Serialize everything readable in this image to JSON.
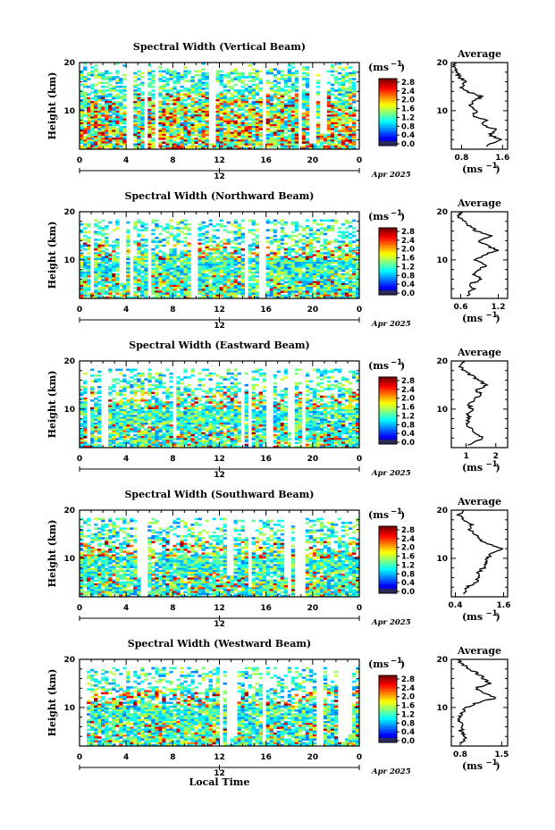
{
  "panels": [
    {
      "title": "Spectral Width (Vertical Beam)",
      "avg_ticks": [
        "0.8",
        "1.6"
      ],
      "avg_range": [
        0.6,
        1.7
      ],
      "avg_profile": [
        [
          2.5,
          1.25
        ],
        [
          4,
          1.55
        ],
        [
          5,
          1.35
        ],
        [
          6,
          1.5
        ],
        [
          7,
          1.2
        ],
        [
          8,
          1.3
        ],
        [
          9,
          1.0
        ],
        [
          10,
          1.1
        ],
        [
          11,
          0.95
        ],
        [
          12,
          1.05
        ],
        [
          13,
          1.2
        ],
        [
          14,
          0.9
        ],
        [
          15,
          0.8
        ],
        [
          16,
          0.9
        ],
        [
          17,
          0.75
        ],
        [
          18,
          0.7
        ],
        [
          19,
          0.65
        ],
        [
          20,
          0.7
        ]
      ]
    },
    {
      "title": "Spectral Width (Northward Beam)",
      "avg_ticks": [
        "0.6",
        "1.2"
      ],
      "avg_range": [
        0.45,
        1.35
      ],
      "avg_profile": [
        [
          2.5,
          0.7
        ],
        [
          4,
          0.8
        ],
        [
          5,
          0.75
        ],
        [
          6,
          0.95
        ],
        [
          7,
          0.8
        ],
        [
          8,
          0.9
        ],
        [
          9,
          1.0
        ],
        [
          10,
          0.85
        ],
        [
          11,
          0.95
        ],
        [
          12,
          1.2
        ],
        [
          13,
          1.0
        ],
        [
          14,
          0.9
        ],
        [
          15,
          1.1
        ],
        [
          16,
          0.85
        ],
        [
          17,
          0.75
        ],
        [
          18,
          0.65
        ],
        [
          19,
          0.55
        ],
        [
          20,
          0.6
        ]
      ]
    },
    {
      "title": "Spectral Width (Eastward Beam)",
      "avg_ticks": [
        "1",
        "2"
      ],
      "avg_range": [
        0.5,
        2.4
      ],
      "avg_profile": [
        [
          2.5,
          1.1
        ],
        [
          4,
          1.6
        ],
        [
          5,
          1.3
        ],
        [
          6,
          1.2
        ],
        [
          7,
          1.0
        ],
        [
          8,
          1.1
        ],
        [
          9,
          1.05
        ],
        [
          10,
          1.2
        ],
        [
          11,
          1.1
        ],
        [
          12,
          1.3
        ],
        [
          13,
          1.5
        ],
        [
          14,
          1.35
        ],
        [
          15,
          1.7
        ],
        [
          16,
          1.4
        ],
        [
          17,
          1.2
        ],
        [
          18,
          0.9
        ],
        [
          19,
          0.8
        ],
        [
          20,
          0.9
        ]
      ]
    },
    {
      "title": "Spectral Width (Southward Beam)",
      "avg_ticks": [
        "0.4",
        "1.6"
      ],
      "avg_range": [
        0.3,
        1.7
      ],
      "avg_profile": [
        [
          2.5,
          0.6
        ],
        [
          4,
          0.7
        ],
        [
          5,
          0.9
        ],
        [
          6,
          1.0
        ],
        [
          7,
          0.95
        ],
        [
          8,
          1.1
        ],
        [
          9,
          1.15
        ],
        [
          10,
          1.2
        ],
        [
          11,
          1.3
        ],
        [
          12,
          1.55
        ],
        [
          13,
          1.2
        ],
        [
          14,
          1.0
        ],
        [
          15,
          0.9
        ],
        [
          16,
          0.75
        ],
        [
          17,
          0.8
        ],
        [
          18,
          0.6
        ],
        [
          19,
          0.5
        ],
        [
          20,
          0.6
        ]
      ]
    },
    {
      "title": "Spectral Width (Westward Beam)",
      "avg_ticks": [
        "0.8",
        "1.5"
      ],
      "avg_range": [
        0.65,
        1.6
      ],
      "avg_profile": [
        [
          2.5,
          0.85
        ],
        [
          4,
          0.9
        ],
        [
          5,
          0.8
        ],
        [
          6,
          0.85
        ],
        [
          7,
          0.8
        ],
        [
          8,
          0.8
        ],
        [
          9,
          0.85
        ],
        [
          10,
          0.9
        ],
        [
          11,
          1.1
        ],
        [
          12,
          1.4
        ],
        [
          13,
          1.2
        ],
        [
          14,
          1.05
        ],
        [
          15,
          1.3
        ],
        [
          16,
          1.2
        ],
        [
          17,
          1.1
        ],
        [
          18,
          0.95
        ],
        [
          19,
          0.85
        ],
        [
          20,
          0.75
        ]
      ]
    }
  ],
  "avg_title": "Average",
  "y_label": "Height (km)",
  "y_ticks": [
    "20",
    "10"
  ],
  "x_ticks": [
    "0",
    "4",
    "8",
    "12",
    "16",
    "20",
    "0"
  ],
  "date_tick": "12",
  "date_label": "Apr 2025",
  "x_label": "Local Time",
  "unit_label": "(ms",
  "unit_exp": "−1",
  "unit_close": ")",
  "colorbar_ticks": [
    "2.8",
    "2.4",
    "2.0",
    "1.6",
    "1.2",
    "0.8",
    "0.4",
    "0.0"
  ],
  "chart_data": {
    "type": "heatmap",
    "quantity": "Spectral Width",
    "beams": [
      "Vertical",
      "Northward",
      "Eastward",
      "Southward",
      "Westward"
    ],
    "x_range": [
      0,
      24
    ],
    "ylim": [
      2,
      20
    ],
    "color_range": [
      0.0,
      3.0
    ]
  }
}
